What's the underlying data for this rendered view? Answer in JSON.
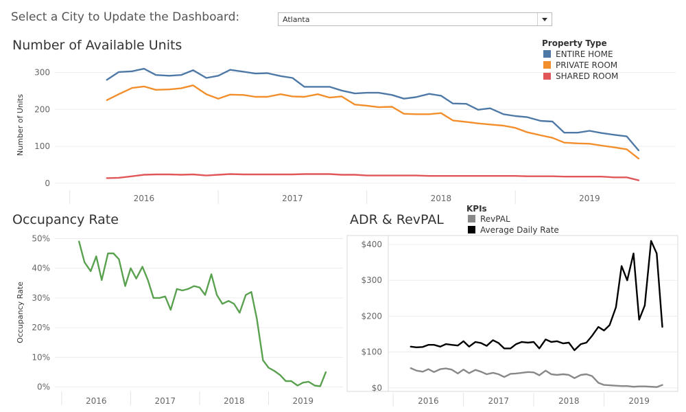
{
  "selector": {
    "prompt": "Select a City to Update the Dashboard:",
    "value": "Atlanta"
  },
  "colors": {
    "entire_home": "#4e79a7",
    "private_room": "#f28e2b",
    "shared_room": "#e15759",
    "occupancy": "#59a14f",
    "revpal": "#888888",
    "adr": "#000000"
  },
  "chart_data": [
    {
      "type": "line",
      "title": "Number of Available Units",
      "ylabel": "Number of Units",
      "xlabel": "",
      "legend_title": "Property Type",
      "legend_placement": "top-right",
      "ylim": [
        -15,
        325
      ],
      "yticks": [
        0,
        100,
        200,
        300
      ],
      "xticks": [
        {
          "label": "2016",
          "x": 2016.0
        },
        {
          "label": "2017",
          "x": 2017.0
        },
        {
          "label": "2018",
          "x": 2018.0
        },
        {
          "label": "2019",
          "x": 2019.0
        }
      ],
      "xlim": [
        2015.4,
        2019.58
      ],
      "x": [
        2015.75,
        2015.83,
        2015.92,
        2016.0,
        2016.08,
        2016.17,
        2016.25,
        2016.33,
        2016.42,
        2016.5,
        2016.58,
        2016.67,
        2016.75,
        2016.83,
        2016.92,
        2017.0,
        2017.08,
        2017.17,
        2017.25,
        2017.33,
        2017.42,
        2017.5,
        2017.58,
        2017.67,
        2017.75,
        2017.83,
        2017.92,
        2018.0,
        2018.08,
        2018.17,
        2018.25,
        2018.33,
        2018.42,
        2018.5,
        2018.58,
        2018.67,
        2018.75,
        2018.83,
        2018.92,
        2019.0,
        2019.08,
        2019.17,
        2019.25,
        2019.33
      ],
      "series": [
        {
          "name": "ENTIRE HOME",
          "color_key": "entire_home",
          "values": [
            280,
            301,
            303,
            310,
            293,
            291,
            293,
            306,
            285,
            291,
            307,
            302,
            297,
            298,
            290,
            285,
            261,
            261,
            261,
            251,
            243,
            245,
            245,
            239,
            229,
            233,
            242,
            237,
            216,
            215,
            199,
            203,
            187,
            182,
            179,
            169,
            167,
            137,
            137,
            142,
            136,
            131,
            127,
            89
          ]
        },
        {
          "name": "PRIVATE ROOM",
          "color_key": "private_room",
          "values": [
            225,
            241,
            258,
            262,
            253,
            254,
            257,
            265,
            241,
            229,
            240,
            239,
            234,
            234,
            241,
            235,
            234,
            241,
            232,
            235,
            213,
            210,
            206,
            207,
            188,
            187,
            187,
            190,
            170,
            166,
            162,
            159,
            156,
            150,
            138,
            130,
            123,
            110,
            108,
            107,
            102,
            97,
            92,
            67
          ]
        },
        {
          "name": "SHARED ROOM",
          "color_key": "shared_room",
          "values": [
            14,
            15,
            19,
            23,
            24,
            24,
            23,
            24,
            21,
            23,
            25,
            24,
            24,
            24,
            24,
            24,
            25,
            25,
            25,
            23,
            23,
            21,
            21,
            21,
            21,
            21,
            20,
            20,
            20,
            20,
            20,
            20,
            20,
            20,
            19,
            19,
            19,
            18,
            18,
            18,
            18,
            16,
            16,
            8
          ]
        }
      ]
    },
    {
      "type": "line",
      "title": "Occupancy Rate",
      "ylabel": "Occupancy Rate",
      "xlabel": "",
      "ylim": [
        -0.01,
        0.51
      ],
      "yticks": [
        0,
        0.1,
        0.2,
        0.3,
        0.4,
        0.5
      ],
      "ytick_labels": [
        "0%",
        "10%",
        "20%",
        "30%",
        "40%",
        "50%"
      ],
      "xticks": [
        {
          "label": "2016",
          "x": 2016.0
        },
        {
          "label": "2017",
          "x": 2017.0
        },
        {
          "label": "2018",
          "x": 2018.0
        },
        {
          "label": "2019",
          "x": 2019.0
        }
      ],
      "xlim": [
        2015.4,
        2019.58
      ],
      "x": [
        2015.75,
        2015.83,
        2015.92,
        2016.0,
        2016.08,
        2016.17,
        2016.25,
        2016.33,
        2016.42,
        2016.5,
        2016.58,
        2016.67,
        2016.75,
        2016.83,
        2016.92,
        2017.0,
        2017.08,
        2017.17,
        2017.25,
        2017.33,
        2017.42,
        2017.5,
        2017.58,
        2017.67,
        2017.75,
        2017.83,
        2017.92,
        2018.0,
        2018.08,
        2018.17,
        2018.25,
        2018.33,
        2018.42,
        2018.5,
        2018.58,
        2018.67,
        2018.75,
        2018.83,
        2018.92,
        2019.0,
        2019.08,
        2019.17,
        2019.25,
        2019.33
      ],
      "series": [
        {
          "name": "",
          "color_key": "occupancy",
          "values": [
            0.49,
            0.42,
            0.39,
            0.44,
            0.36,
            0.45,
            0.45,
            0.43,
            0.34,
            0.4,
            0.365,
            0.405,
            0.36,
            0.3,
            0.3,
            0.305,
            0.26,
            0.33,
            0.325,
            0.33,
            0.34,
            0.335,
            0.31,
            0.38,
            0.31,
            0.28,
            0.29,
            0.28,
            0.25,
            0.31,
            0.32,
            0.23,
            0.09,
            0.065,
            0.055,
            0.04,
            0.02,
            0.02,
            0.005,
            0.015,
            0.018,
            0.005,
            0.003,
            0.05
          ]
        }
      ]
    },
    {
      "type": "line",
      "title": "ADR & RevPAL",
      "ylabel": "",
      "xlabel": "",
      "legend_title": "KPIs",
      "legend_placement": "top",
      "ylim": [
        -10,
        425
      ],
      "yticks": [
        0,
        100,
        200,
        300,
        400
      ],
      "ytick_labels": [
        "$0",
        "$100",
        "$200",
        "$300",
        "$400"
      ],
      "xticks": [
        {
          "label": "2016",
          "x": 2016.0
        },
        {
          "label": "2017",
          "x": 2017.0
        },
        {
          "label": "2018",
          "x": 2018.0
        },
        {
          "label": "2019",
          "x": 2019.0
        }
      ],
      "xlim": [
        2015.43,
        2019.55
      ],
      "x": [
        2015.75,
        2015.83,
        2015.92,
        2016.0,
        2016.08,
        2016.17,
        2016.25,
        2016.33,
        2016.42,
        2016.5,
        2016.58,
        2016.67,
        2016.75,
        2016.83,
        2016.92,
        2017.0,
        2017.08,
        2017.17,
        2017.25,
        2017.33,
        2017.42,
        2017.5,
        2017.58,
        2017.67,
        2017.75,
        2017.83,
        2017.92,
        2018.0,
        2018.08,
        2018.17,
        2018.25,
        2018.33,
        2018.42,
        2018.5,
        2018.58,
        2018.67,
        2018.75,
        2018.83,
        2018.92,
        2019.0,
        2019.08,
        2019.17,
        2019.25,
        2019.33
      ],
      "series": [
        {
          "name": "RevPAL",
          "color_key": "revpal",
          "values": [
            55,
            48,
            45,
            52,
            44,
            52,
            54,
            51,
            40,
            51,
            41,
            50,
            45,
            38,
            42,
            38,
            30,
            39,
            40,
            42,
            44,
            43,
            35,
            48,
            38,
            36,
            38,
            36,
            27,
            36,
            38,
            33,
            14,
            8,
            7,
            6,
            5,
            5,
            3,
            4,
            4,
            3,
            2,
            8
          ]
        },
        {
          "name": "Average Daily Rate",
          "color_key": "adr",
          "values": [
            115,
            113,
            114,
            120,
            120,
            115,
            122,
            120,
            118,
            130,
            115,
            128,
            125,
            117,
            133,
            125,
            110,
            110,
            122,
            128,
            126,
            128,
            110,
            135,
            128,
            130,
            124,
            126,
            105,
            122,
            126,
            145,
            170,
            160,
            175,
            225,
            340,
            300,
            375,
            190,
            230,
            410,
            375,
            170
          ]
        }
      ]
    }
  ]
}
